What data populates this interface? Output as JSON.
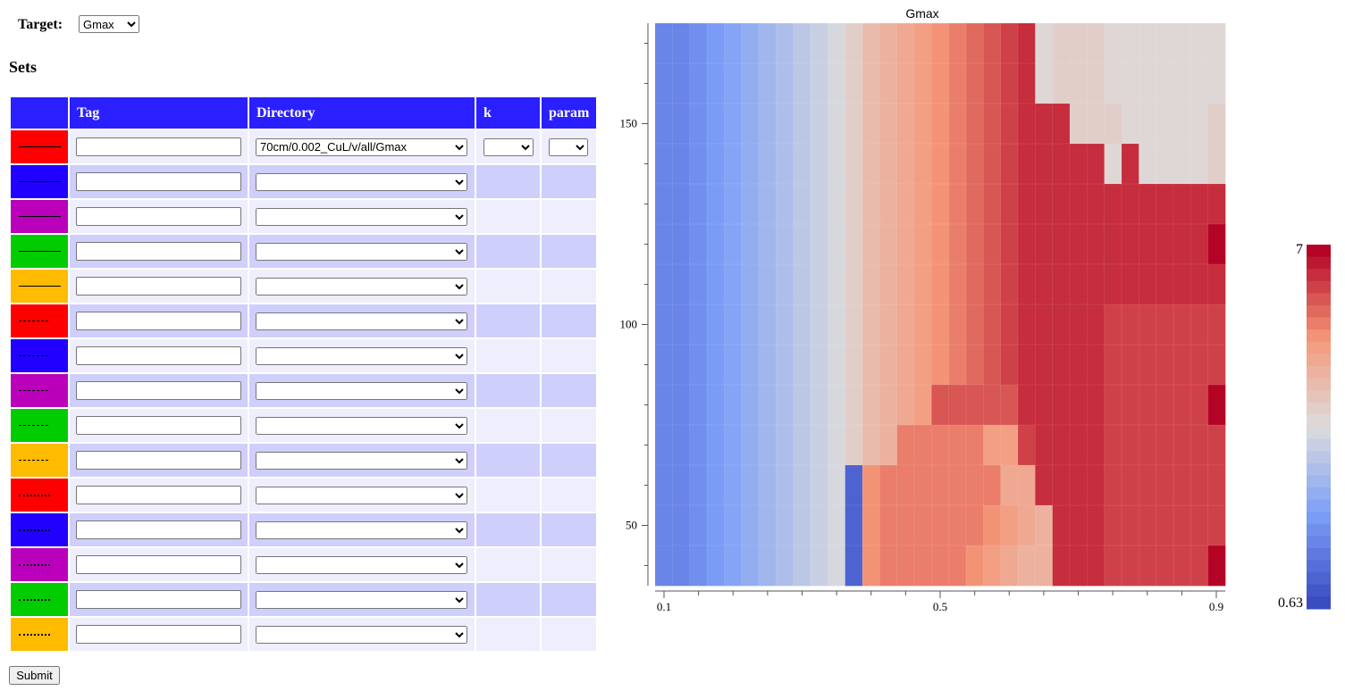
{
  "target": {
    "label": "Target:",
    "selected": "Gmax",
    "options": [
      "Gmax"
    ]
  },
  "sets": {
    "heading": "Sets",
    "columns": [
      "",
      "Tag",
      "Directory",
      "k",
      "param"
    ],
    "rows": [
      {
        "color": "#ff0000",
        "line": "solid",
        "tag": "",
        "directory": "70cm/0.002_CuL/v/all/Gmax",
        "has_k_param": true
      },
      {
        "color": "#2200ff",
        "line": "solid",
        "tag": "",
        "directory": "",
        "has_k_param": false
      },
      {
        "color": "#bb00bb",
        "line": "solid",
        "tag": "",
        "directory": "",
        "has_k_param": false
      },
      {
        "color": "#00cc00",
        "line": "solid",
        "tag": "",
        "directory": "",
        "has_k_param": false
      },
      {
        "color": "#ffbb00",
        "line": "solid",
        "tag": "",
        "directory": "",
        "has_k_param": false
      },
      {
        "color": "#ff0000",
        "line": "dashed",
        "tag": "",
        "directory": "",
        "has_k_param": false
      },
      {
        "color": "#2200ff",
        "line": "dashed",
        "tag": "",
        "directory": "",
        "has_k_param": false
      },
      {
        "color": "#bb00bb",
        "line": "dashed",
        "tag": "",
        "directory": "",
        "has_k_param": false
      },
      {
        "color": "#00cc00",
        "line": "dashed",
        "tag": "",
        "directory": "",
        "has_k_param": false
      },
      {
        "color": "#ffbb00",
        "line": "dashed",
        "tag": "",
        "directory": "",
        "has_k_param": false
      },
      {
        "color": "#ff0000",
        "line": "dotted",
        "tag": "",
        "directory": "",
        "has_k_param": false
      },
      {
        "color": "#2200ff",
        "line": "dotted",
        "tag": "",
        "directory": "",
        "has_k_param": false
      },
      {
        "color": "#bb00bb",
        "line": "dotted",
        "tag": "",
        "directory": "",
        "has_k_param": false
      },
      {
        "color": "#00cc00",
        "line": "dotted",
        "tag": "",
        "directory": "",
        "has_k_param": false
      },
      {
        "color": "#ffbb00",
        "line": "dotted",
        "tag": "",
        "directory": "",
        "has_k_param": false
      }
    ]
  },
  "submit_label": "Submit",
  "chart_data": {
    "type": "heatmap",
    "title": "Gmax",
    "x_ticks": [
      0.1,
      0.5,
      0.9
    ],
    "y_ticks": [
      50,
      100,
      150
    ],
    "xlim": [
      0.1,
      0.9
    ],
    "ylim": [
      35,
      175
    ],
    "colorbar": {
      "min": 0.63,
      "max": 7,
      "min_label": "0.63",
      "max_label": "7",
      "steps": 30,
      "colormap": "coolwarm"
    },
    "grid": {
      "n_cols": 33,
      "n_rows": 14,
      "row_order": "top-to-bottom",
      "values": [
        [
          5,
          5,
          6,
          7,
          8,
          9,
          10,
          11,
          12,
          13,
          14,
          16,
          18,
          19,
          20,
          21,
          22,
          23,
          24,
          25,
          26,
          27,
          15,
          16,
          16,
          16,
          15,
          15,
          15,
          15,
          15,
          15,
          15
        ],
        [
          5,
          5,
          6,
          7,
          8,
          9,
          10,
          11,
          12,
          13,
          14,
          16,
          18,
          19,
          20,
          21,
          22,
          23,
          24,
          25,
          26,
          27,
          15,
          16,
          16,
          16,
          15,
          15,
          15,
          15,
          15,
          15,
          15
        ],
        [
          5,
          5,
          6,
          7,
          8,
          9,
          10,
          11,
          12,
          13,
          14,
          16,
          18,
          19,
          20,
          21,
          22,
          23,
          24,
          25,
          26,
          27,
          27,
          27,
          16,
          16,
          16,
          15,
          15,
          15,
          15,
          15,
          16
        ],
        [
          5,
          5,
          6,
          7,
          8,
          9,
          10,
          11,
          12,
          13,
          14,
          16,
          18,
          19,
          20,
          21,
          22,
          23,
          24,
          25,
          26,
          27,
          27,
          27,
          27,
          27,
          15,
          27,
          15,
          15,
          15,
          15,
          16
        ],
        [
          5,
          5,
          6,
          7,
          8,
          9,
          10,
          11,
          12,
          13,
          14,
          16,
          18,
          19,
          20,
          21,
          22,
          23,
          24,
          25,
          26,
          27,
          27,
          27,
          27,
          27,
          27,
          27,
          27,
          27,
          27,
          27,
          27
        ],
        [
          5,
          5,
          6,
          7,
          8,
          9,
          10,
          11,
          12,
          13,
          14,
          16,
          18,
          19,
          20,
          21,
          22,
          23,
          24,
          25,
          26,
          27,
          27,
          27,
          27,
          27,
          27,
          27,
          27,
          27,
          27,
          27,
          29
        ],
        [
          5,
          5,
          6,
          7,
          8,
          9,
          10,
          11,
          12,
          13,
          14,
          16,
          18,
          19,
          20,
          21,
          22,
          23,
          24,
          25,
          26,
          27,
          27,
          27,
          27,
          27,
          27,
          27,
          27,
          27,
          27,
          27,
          27
        ],
        [
          5,
          5,
          6,
          7,
          8,
          9,
          10,
          11,
          12,
          13,
          14,
          16,
          18,
          19,
          20,
          21,
          22,
          23,
          24,
          25,
          26,
          27,
          27,
          27,
          27,
          27,
          26,
          26,
          26,
          26,
          26,
          26,
          26
        ],
        [
          5,
          5,
          6,
          7,
          8,
          9,
          10,
          11,
          12,
          13,
          14,
          16,
          18,
          19,
          20,
          21,
          22,
          23,
          24,
          25,
          26,
          27,
          27,
          27,
          27,
          27,
          26,
          26,
          26,
          26,
          26,
          26,
          26
        ],
        [
          5,
          5,
          6,
          7,
          8,
          9,
          10,
          11,
          12,
          13,
          14,
          16,
          18,
          19,
          20,
          21,
          25,
          25,
          25,
          25,
          25,
          27,
          27,
          27,
          27,
          27,
          26,
          26,
          26,
          26,
          26,
          26,
          29
        ],
        [
          5,
          5,
          6,
          7,
          8,
          9,
          10,
          11,
          12,
          13,
          14,
          16,
          18,
          19,
          23,
          23,
          23,
          23,
          23,
          21,
          21,
          26,
          27,
          27,
          27,
          27,
          26,
          26,
          26,
          26,
          26,
          26,
          26
        ],
        [
          5,
          5,
          6,
          7,
          8,
          9,
          10,
          11,
          12,
          13,
          14,
          2,
          22,
          23,
          23,
          23,
          23,
          23,
          23,
          23,
          20,
          20,
          27,
          27,
          27,
          27,
          26,
          26,
          26,
          26,
          26,
          26,
          26
        ],
        [
          5,
          5,
          6,
          7,
          8,
          9,
          10,
          11,
          12,
          13,
          14,
          2,
          22,
          23,
          23,
          23,
          23,
          23,
          23,
          22,
          21,
          20,
          19,
          27,
          27,
          27,
          26,
          26,
          26,
          26,
          26,
          26,
          26
        ],
        [
          5,
          5,
          6,
          7,
          8,
          9,
          10,
          11,
          12,
          13,
          14,
          2,
          22,
          23,
          23,
          23,
          23,
          23,
          22,
          21,
          20,
          19,
          19,
          27,
          27,
          27,
          26,
          26,
          26,
          26,
          26,
          26,
          29
        ]
      ]
    }
  }
}
